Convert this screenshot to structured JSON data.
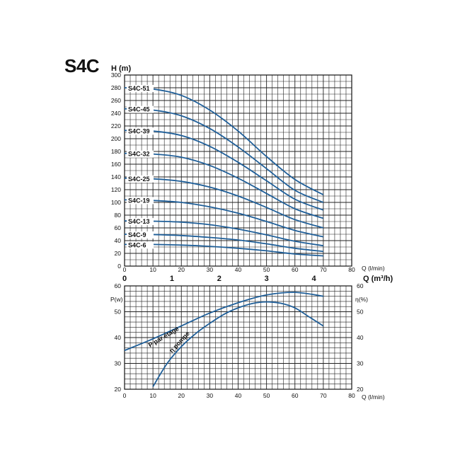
{
  "title": "S4C",
  "chart_data": [
    {
      "type": "line",
      "ylabel": "H (m)",
      "xlabel": "Q (l/min)",
      "xlabel2": "Q (m³/h)",
      "xlim": [
        0,
        80
      ],
      "ylim": [
        0,
        300
      ],
      "x_ticks": [
        0,
        10,
        20,
        30,
        40,
        50,
        60,
        70,
        80
      ],
      "y_ticks": [
        0,
        20,
        40,
        60,
        80,
        100,
        120,
        140,
        160,
        180,
        200,
        220,
        240,
        260,
        280,
        300
      ],
      "x2_ticks": [
        0,
        1,
        2,
        3,
        4
      ],
      "grid": true,
      "curve_color": "#1f5f99",
      "series": [
        {
          "name": "S4C-51",
          "x": [
            0,
            10,
            20,
            30,
            40,
            50,
            60,
            70
          ],
          "y": [
            280,
            278,
            268,
            245,
            212,
            172,
            136,
            112
          ]
        },
        {
          "name": "S4C-45",
          "x": [
            0,
            10,
            20,
            30,
            40,
            50,
            60,
            70
          ],
          "y": [
            247,
            245,
            236,
            216,
            187,
            153,
            119,
            100
          ]
        },
        {
          "name": "S4C-39",
          "x": [
            0,
            10,
            20,
            30,
            40,
            50,
            60,
            70
          ],
          "y": [
            213,
            212,
            205,
            188,
            163,
            134,
            105,
            88
          ]
        },
        {
          "name": "S4C-32",
          "x": [
            0,
            10,
            20,
            30,
            40,
            50,
            60,
            70
          ],
          "y": [
            177,
            176,
            171,
            158,
            138,
            114,
            90,
            75
          ]
        },
        {
          "name": "S4C-25",
          "x": [
            0,
            10,
            20,
            30,
            40,
            50,
            60,
            70
          ],
          "y": [
            138,
            137,
            133,
            124,
            110,
            92,
            73,
            60
          ]
        },
        {
          "name": "S4C-19",
          "x": [
            0,
            10,
            20,
            30,
            40,
            50,
            60,
            70
          ],
          "y": [
            104,
            103,
            100,
            93,
            83,
            70,
            56,
            46
          ]
        },
        {
          "name": "S4C-13",
          "x": [
            0,
            10,
            20,
            30,
            40,
            50,
            60,
            70
          ],
          "y": [
            71,
            70.5,
            69,
            65,
            58,
            49,
            39,
            32
          ]
        },
        {
          "name": "S4C-9",
          "x": [
            0,
            10,
            20,
            30,
            40,
            50,
            60,
            70
          ],
          "y": [
            50,
            49.5,
            48,
            45,
            41,
            35,
            28,
            23
          ]
        },
        {
          "name": "S4C-6",
          "x": [
            0,
            10,
            20,
            30,
            40,
            50,
            60,
            70
          ],
          "y": [
            34,
            34,
            33,
            31,
            28,
            24,
            19,
            16
          ]
        }
      ]
    },
    {
      "type": "line",
      "ylabel": "P(w)",
      "ylabel_right": "η(%)",
      "xlabel": "Q (l/min)",
      "xlim": [
        0,
        80
      ],
      "ylim": [
        20,
        60
      ],
      "x_ticks": [
        0,
        10,
        20,
        30,
        40,
        50,
        60,
        70,
        80
      ],
      "y_ticks": [
        20,
        30,
        40,
        50,
        60
      ],
      "y_right_ticks": [
        20,
        30,
        40,
        50,
        60
      ],
      "grid": true,
      "curve_color": "#1f5f99",
      "series": [
        {
          "name": "P par étage",
          "x": [
            0,
            10,
            20,
            30,
            40,
            50,
            60,
            70
          ],
          "y": [
            35,
            39.5,
            44.5,
            49.5,
            53.5,
            56.5,
            57.5,
            56
          ]
        },
        {
          "name": "η pompe",
          "x": [
            10,
            15,
            20,
            25,
            30,
            35,
            40,
            45,
            50,
            55,
            60,
            65,
            70
          ],
          "y": [
            21,
            30,
            36.5,
            41.5,
            45.5,
            49,
            51.5,
            53.2,
            53.8,
            53.3,
            51.5,
            48,
            44.5
          ]
        }
      ]
    }
  ]
}
